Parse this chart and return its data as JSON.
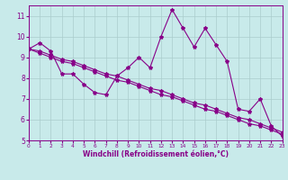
{
  "xlabel": "Windchill (Refroidissement éolien,°C)",
  "bg_color": "#c8eaea",
  "line_color": "#880088",
  "grid_color": "#aacccc",
  "x_values": [
    0,
    1,
    2,
    3,
    4,
    5,
    6,
    7,
    8,
    9,
    10,
    11,
    12,
    13,
    14,
    15,
    16,
    17,
    18,
    19,
    20,
    21,
    22,
    23
  ],
  "line1_y": [
    9.4,
    9.7,
    9.3,
    8.2,
    8.2,
    7.7,
    7.3,
    7.2,
    8.1,
    8.5,
    9.0,
    8.5,
    10.0,
    11.3,
    10.4,
    9.5,
    10.4,
    9.6,
    8.8,
    6.5,
    6.4,
    7.0,
    5.7,
    5.2
  ],
  "line2_y": [
    9.4,
    9.2,
    9.0,
    8.8,
    8.7,
    8.5,
    8.3,
    8.1,
    7.9,
    7.8,
    7.6,
    7.4,
    7.2,
    7.1,
    6.9,
    6.7,
    6.5,
    6.4,
    6.2,
    6.0,
    5.8,
    5.7,
    5.5,
    5.3
  ],
  "line3_y": [
    9.4,
    9.3,
    9.1,
    8.9,
    8.8,
    8.6,
    8.4,
    8.2,
    8.1,
    7.9,
    7.7,
    7.5,
    7.4,
    7.2,
    7.0,
    6.8,
    6.7,
    6.5,
    6.3,
    6.1,
    6.0,
    5.8,
    5.6,
    5.4
  ],
  "ylim_min": 5,
  "ylim_max": 11.5,
  "yticks": [
    5,
    6,
    7,
    8,
    9,
    10,
    11
  ],
  "xlim_min": 0,
  "xlim_max": 23
}
